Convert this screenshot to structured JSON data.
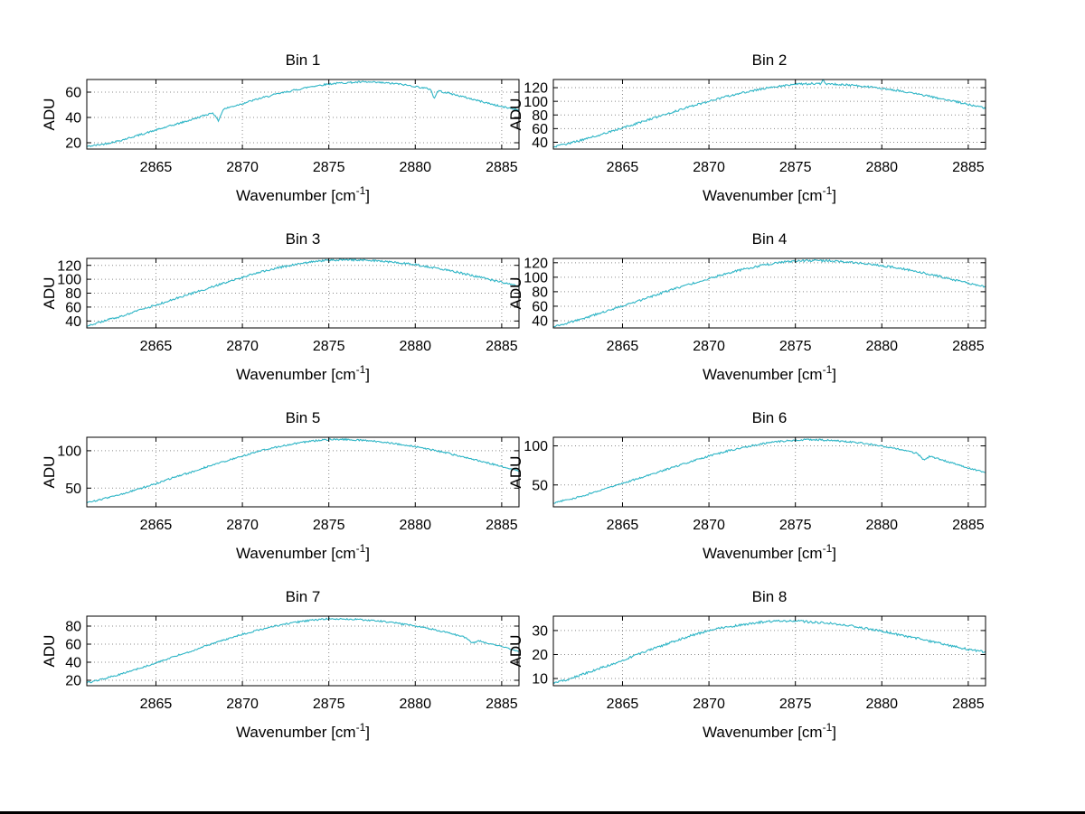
{
  "figure": {
    "background": "#ffffff",
    "line_color": "#2eb5c6",
    "grid_color": "#8a8a8a",
    "axis_color": "#000000",
    "text_color": "#000000",
    "ylabel": "ADU",
    "xlabel_pre": "Wavenumber [cm",
    "xlabel_sup": "-1",
    "xlabel_post": "]",
    "x": [
      2861,
      2862,
      2863,
      2864,
      2865,
      2866,
      2867,
      2868,
      2869,
      2870,
      2871,
      2872,
      2873,
      2874,
      2875,
      2876,
      2877,
      2878,
      2879,
      2880,
      2881,
      2882,
      2883,
      2884,
      2885,
      2886
    ]
  },
  "chart_data": [
    {
      "type": "line",
      "title": "Bin 1",
      "xlabel": "Wavenumber [cm^-1]",
      "ylabel": "ADU",
      "xlim": [
        2861,
        2886
      ],
      "ylim": [
        15,
        70
      ],
      "xticks": [
        2865,
        2870,
        2875,
        2880,
        2885
      ],
      "yticks": [
        20,
        40,
        60
      ],
      "y": [
        17,
        19,
        22,
        26,
        30,
        34,
        38,
        42.5,
        47,
        51,
        55,
        58.5,
        61.5,
        64.5,
        66.5,
        67.5,
        68,
        67.5,
        66.5,
        64.5,
        62,
        59,
        55.5,
        52,
        48.5,
        46
      ],
      "noise": 0.7,
      "artifacts": [
        {
          "x": 2868.6,
          "dy": -8,
          "w": 0.3
        },
        {
          "x": 2881.1,
          "dy": -7,
          "w": 0.2
        }
      ]
    },
    {
      "type": "line",
      "title": "Bin 2",
      "xlabel": "Wavenumber [cm^-1]",
      "ylabel": "ADU",
      "xlim": [
        2861,
        2886
      ],
      "ylim": [
        30,
        132
      ],
      "xticks": [
        2865,
        2870,
        2875,
        2880,
        2885
      ],
      "yticks": [
        40,
        60,
        80,
        100,
        120
      ],
      "y": [
        33,
        39,
        46,
        53,
        61,
        69,
        77,
        85,
        93,
        100,
        107,
        113,
        118,
        122,
        125,
        126,
        125.5,
        124,
        122,
        119,
        115.5,
        111,
        106,
        101,
        95.5,
        90
      ],
      "noise": 1.4,
      "artifacts": [
        {
          "x": 2876.6,
          "dy": 6,
          "w": 0.15
        }
      ]
    },
    {
      "type": "line",
      "title": "Bin 3",
      "xlabel": "Wavenumber [cm^-1]",
      "ylabel": "ADU",
      "xlim": [
        2861,
        2886
      ],
      "ylim": [
        30,
        130
      ],
      "xticks": [
        2865,
        2870,
        2875,
        2880,
        2885
      ],
      "yticks": [
        40,
        60,
        80,
        100,
        120
      ],
      "y": [
        33,
        40,
        47,
        55,
        63,
        71,
        79,
        87,
        95,
        103,
        110,
        116,
        121,
        125,
        127.5,
        128,
        127.5,
        126,
        124,
        121,
        117,
        112.5,
        107,
        101.5,
        95.5,
        90
      ],
      "noise": 1.4,
      "artifacts": []
    },
    {
      "type": "line",
      "title": "Bin 4",
      "xlabel": "Wavenumber [cm^-1]",
      "ylabel": "ADU",
      "xlim": [
        2861,
        2886
      ],
      "ylim": [
        30,
        126
      ],
      "xticks": [
        2865,
        2870,
        2875,
        2880,
        2885
      ],
      "yticks": [
        40,
        60,
        80,
        100,
        120
      ],
      "y": [
        32,
        38,
        45,
        53,
        60,
        68,
        76,
        84,
        91,
        98,
        105,
        111,
        116,
        120,
        122.5,
        123,
        122.5,
        121,
        119,
        116,
        112.5,
        108,
        103,
        97.5,
        92,
        87
      ],
      "noise": 1.4,
      "artifacts": []
    },
    {
      "type": "line",
      "title": "Bin 5",
      "xlabel": "Wavenumber [cm^-1]",
      "ylabel": "ADU",
      "xlim": [
        2861,
        2886
      ],
      "ylim": [
        25,
        118
      ],
      "xticks": [
        2865,
        2870,
        2875,
        2880,
        2885
      ],
      "yticks": [
        50,
        100
      ],
      "y": [
        30,
        36,
        42,
        49,
        56,
        64,
        71,
        79,
        86,
        93,
        99.5,
        105,
        109.5,
        113,
        115,
        115,
        114,
        112,
        109,
        105.5,
        101,
        96,
        90.5,
        85,
        79,
        73
      ],
      "noise": 1.1,
      "artifacts": []
    },
    {
      "type": "line",
      "title": "Bin 6",
      "xlabel": "Wavenumber [cm^-1]",
      "ylabel": "ADU",
      "xlim": [
        2861,
        2886
      ],
      "ylim": [
        22,
        111
      ],
      "xticks": [
        2865,
        2870,
        2875,
        2880,
        2885
      ],
      "yticks": [
        50,
        100
      ],
      "y": [
        27,
        32,
        38,
        45,
        52,
        59,
        66,
        73,
        80,
        87,
        93,
        98,
        102.5,
        105.5,
        107.5,
        108,
        107,
        105.5,
        103,
        99.5,
        95.5,
        90.5,
        85,
        78.5,
        72,
        65.5
      ],
      "noise": 1.1,
      "artifacts": [
        {
          "x": 2882.4,
          "dy": -6,
          "w": 0.35
        }
      ]
    },
    {
      "type": "line",
      "title": "Bin 7",
      "xlabel": "Wavenumber [cm^-1]",
      "ylabel": "ADU",
      "xlim": [
        2861,
        2886
      ],
      "ylim": [
        14,
        91
      ],
      "xticks": [
        2865,
        2870,
        2875,
        2880,
        2885
      ],
      "yticks": [
        20,
        40,
        60,
        80
      ],
      "y": [
        17,
        22,
        27,
        33,
        39,
        46,
        52,
        59,
        65,
        71,
        76,
        80.5,
        84,
        86.5,
        88,
        88,
        87,
        85.5,
        83,
        80,
        76.5,
        72,
        67,
        62,
        57,
        52.5
      ],
      "noise": 0.9,
      "artifacts": [
        {
          "x": 2883.3,
          "dy": -4,
          "w": 0.4
        }
      ]
    },
    {
      "type": "line",
      "title": "Bin 8",
      "xlabel": "Wavenumber [cm^-1]",
      "ylabel": "ADU",
      "xlim": [
        2861,
        2886
      ],
      "ylim": [
        7,
        36
      ],
      "xticks": [
        2865,
        2870,
        2875,
        2880,
        2885
      ],
      "yticks": [
        10,
        20,
        30
      ],
      "y": [
        8,
        10,
        12.5,
        15,
        17.5,
        20.5,
        23,
        25.5,
        28,
        30,
        31.5,
        32.5,
        33.5,
        34,
        34,
        33.5,
        33,
        32.2,
        31,
        29.8,
        28.2,
        26.8,
        25.2,
        23.6,
        22.2,
        21
      ],
      "noise": 0.45,
      "artifacts": []
    }
  ]
}
